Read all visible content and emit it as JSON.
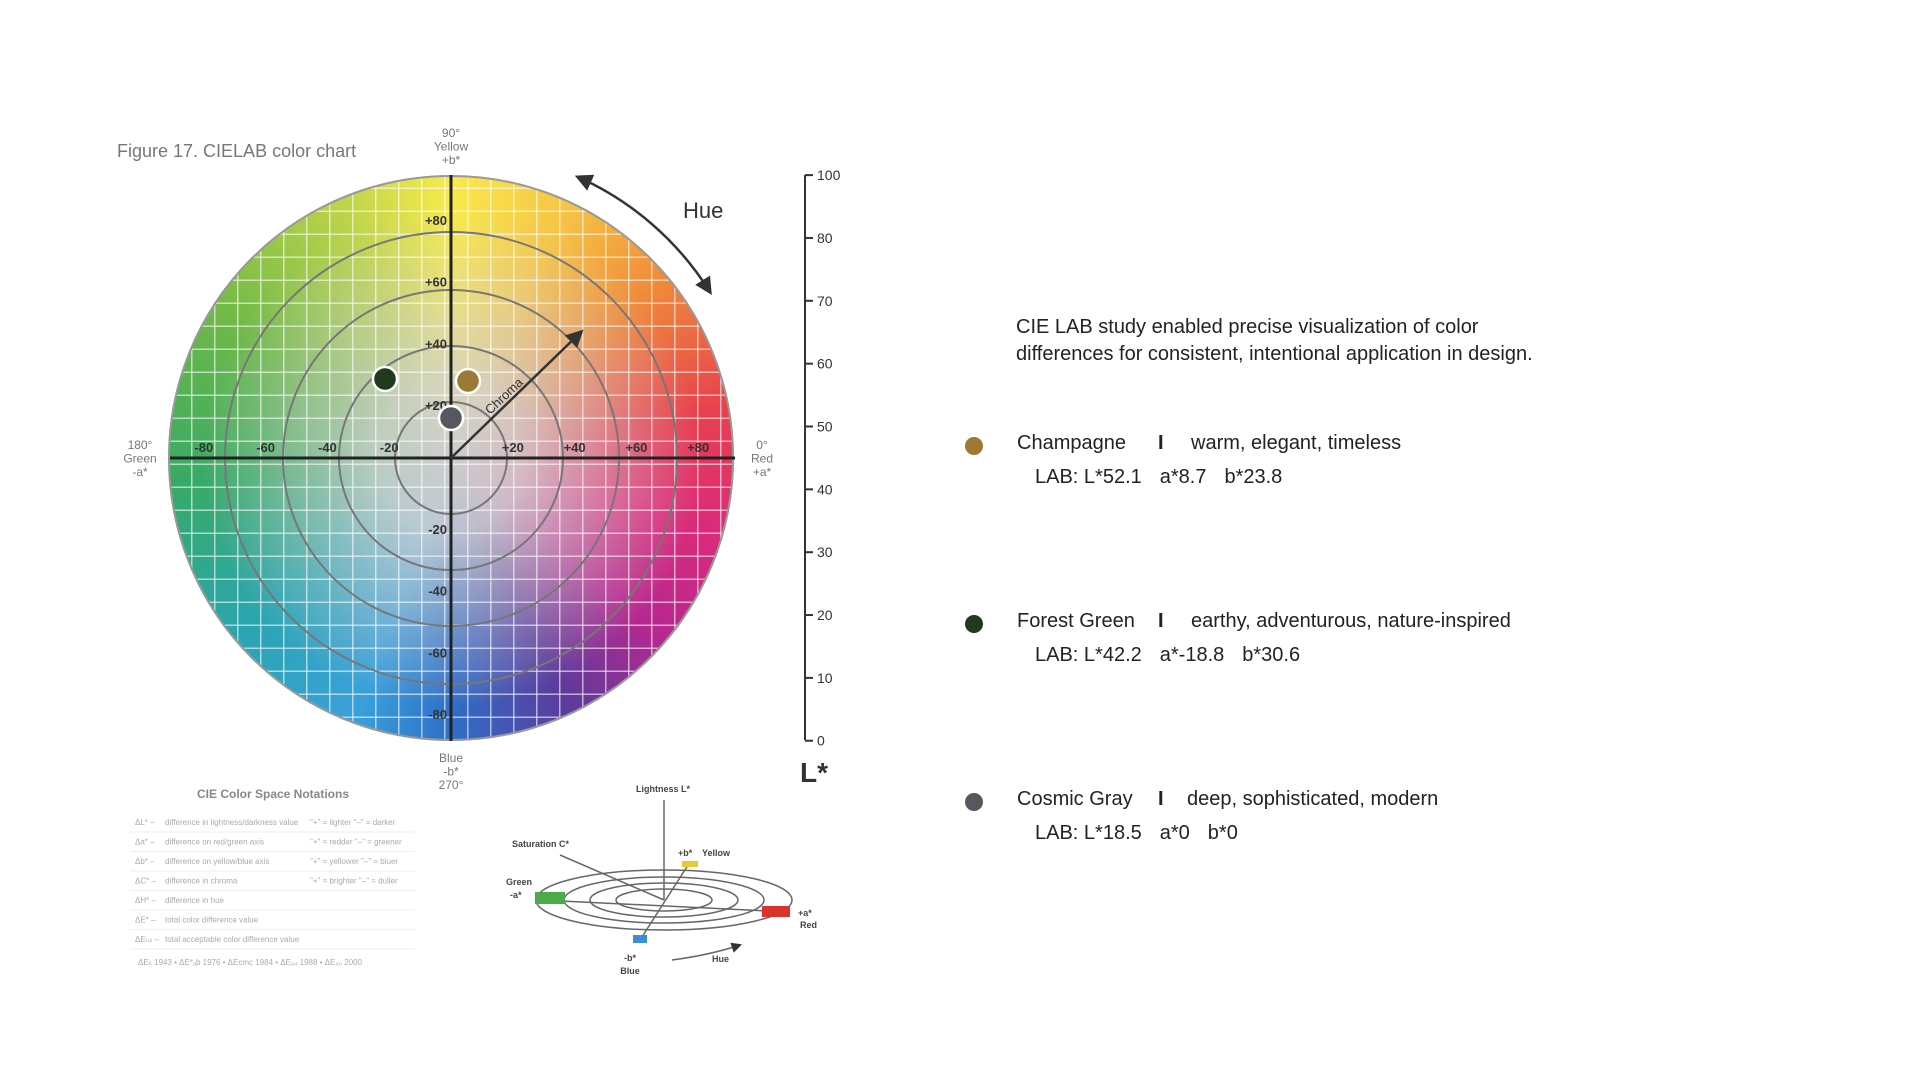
{
  "figure": {
    "caption": "Figure 17. CIELAB color chart",
    "top_labels": [
      "90°",
      "Yellow",
      "+b*"
    ],
    "left_labels": [
      "180°",
      "Green",
      "-a*"
    ],
    "right_labels": [
      "0°",
      "Red",
      "+a*"
    ],
    "bottom_labels": [
      "Blue",
      "-b*",
      "270°"
    ],
    "a_ticks": [
      "-80",
      "-60",
      "-40",
      "-20",
      "+20",
      "+40",
      "+60",
      "+80"
    ],
    "b_ticks": [
      "+80",
      "+60",
      "+40",
      "+20",
      "-20",
      "-40",
      "-60",
      "-80"
    ],
    "hue_label": "Hue",
    "chroma_label": "Chroma",
    "lightness_ticks": [
      "100",
      "80",
      "70",
      "60",
      "50",
      "40",
      "30",
      "20",
      "10",
      "0"
    ],
    "lightness_label": "L*",
    "notations": {
      "title": "CIE Color Space Notations",
      "rows": [
        [
          "ΔL* –",
          "difference in lightness/darkness value",
          "\"+\" = lighter  \"–\" = darker"
        ],
        [
          "Δa* –",
          "difference on red/green axis",
          "\"+\" = redder  \"–\" = greener"
        ],
        [
          "Δb* –",
          "difference on yellow/blue axis",
          "\"+\" = yellower  \"–\" = bluer"
        ],
        [
          "ΔC* –",
          "difference in chroma",
          "\"+\" = brighter  \"–\" = duller"
        ],
        [
          "ΔH* –",
          "difference in hue",
          ""
        ],
        [
          "ΔE* –",
          "total color difference value",
          ""
        ],
        [
          "ΔEₜₒₗ –",
          "total acceptable color difference value",
          ""
        ]
      ],
      "footer": "ΔEₕ 1943  •  ΔE*ₐb 1976  •  ΔEcmc 1984  •  ΔE₉₄ 1988  •  ΔE₀₀ 2000"
    },
    "diagram": {
      "lightness": "Lightness L*",
      "saturation": "Saturation C*",
      "yellow": [
        "+b*",
        "Yellow"
      ],
      "green": [
        "Green",
        "-a*"
      ],
      "red": [
        "+a*",
        "Red"
      ],
      "blue": [
        "-b*",
        "Blue"
      ],
      "hue": "Hue"
    }
  },
  "intro": [
    "CIE LAB study enabled precise visualization of color",
    "differences for consistent, intentional application in design."
  ],
  "separator": "I",
  "colors": [
    {
      "name": "Champagne",
      "color": "#9a7a35",
      "traits": "warm, elegant, timeless",
      "lab": [
        "LAB: L*52.1",
        "a*8.7",
        "b*23.8"
      ]
    },
    {
      "name": "Forest Green",
      "color": "#1f3a1c",
      "traits": "earthy, adventurous, nature-inspired",
      "lab": [
        "LAB: L*42.2",
        "a*-18.8",
        "b*30.6"
      ]
    },
    {
      "name": "Cosmic Gray",
      "color": "#55585f",
      "traits": "deep, sophisticated, modern",
      "lab": [
        "LAB: L*18.5",
        "a*0",
        "b*0"
      ]
    }
  ]
}
